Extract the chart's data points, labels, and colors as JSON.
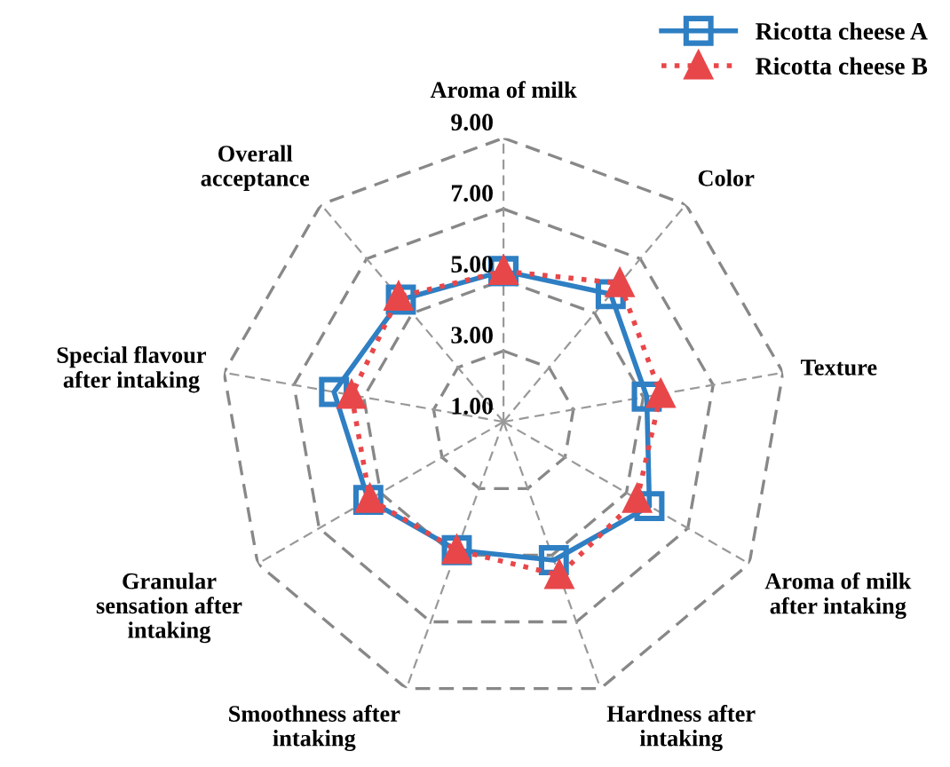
{
  "chart_data": {
    "type": "radar",
    "categories": [
      "Aroma of milk",
      "Color",
      "Texture",
      "Aroma of milk\nafter intaking",
      "Hardness after\nintaking",
      "Smoothness after\nintaking",
      "Granular\nsensation after\nintaking",
      "Special flavour\nafter intaking",
      "Overall\nacceptance"
    ],
    "series": [
      {
        "name": "Ricotta cheese A",
        "color": "#2e7fc3",
        "values": [
          5.25,
          5.7,
          5.1,
          5.75,
          5.15,
          4.85,
          5.4,
          5.85,
          5.5
        ],
        "marker": "square",
        "line_style": "solid"
      },
      {
        "name": "Ricotta cheese B",
        "color": "#e8474a",
        "values": [
          5.25,
          6.1,
          5.5,
          5.35,
          5.6,
          4.85,
          5.35,
          5.35,
          5.6
        ],
        "marker": "triangle",
        "line_style": "dotted"
      }
    ],
    "ylim": [
      1,
      9
    ],
    "yticks": [
      {
        "value": 1,
        "label": "1.00"
      },
      {
        "value": 3,
        "label": "3.00"
      },
      {
        "value": 5,
        "label": "5.00"
      },
      {
        "value": 7,
        "label": "7.00"
      },
      {
        "value": 9,
        "label": "9.00"
      }
    ],
    "grid": true,
    "legend": "top right"
  }
}
